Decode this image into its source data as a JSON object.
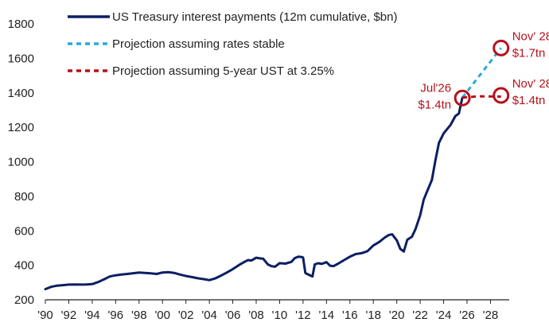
{
  "chart_data": {
    "type": "line",
    "title": "",
    "xlabel": "",
    "ylabel": "",
    "ylim": [
      200,
      1800
    ],
    "xlim": [
      1990,
      2029.6
    ],
    "y_ticks": [
      200,
      400,
      600,
      800,
      1000,
      1200,
      1400,
      1600,
      1800
    ],
    "x_ticks": [
      "'90",
      "'92",
      "'94",
      "'96",
      "'98",
      "'00",
      "'02",
      "'04",
      "'06",
      "'08",
      "'10",
      "'12",
      "'14",
      "'16",
      "'18",
      "'20",
      "'22",
      "'24",
      "'26",
      "'28"
    ],
    "grid": false,
    "legend_position": "top-left",
    "series": [
      {
        "name": "US Treasury interest payments (12m cumulative, $bn)",
        "style": "solid",
        "color": "#0b1f63",
        "x": [
          1990.0,
          1990.5,
          1991.0,
          1991.5,
          1992.0,
          1992.5,
          1993.0,
          1993.5,
          1994.0,
          1994.5,
          1995.0,
          1995.5,
          1996.0,
          1996.5,
          1997.0,
          1997.5,
          1998.0,
          1998.5,
          1999.0,
          1999.5,
          2000.0,
          2000.5,
          2001.0,
          2001.5,
          2002.0,
          2002.5,
          2003.0,
          2003.5,
          2004.0,
          2004.5,
          2005.0,
          2005.5,
          2006.0,
          2006.5,
          2007.0,
          2007.3,
          2007.6,
          2008.0,
          2008.3,
          2008.6,
          2009.0,
          2009.3,
          2009.6,
          2010.0,
          2010.5,
          2011.0,
          2011.3,
          2011.6,
          2011.9,
          2012.0,
          2012.2,
          2012.5,
          2012.8,
          2013.0,
          2013.3,
          2013.6,
          2014.0,
          2014.3,
          2014.6,
          2015.0,
          2015.5,
          2016.0,
          2016.5,
          2017.0,
          2017.5,
          2018.0,
          2018.5,
          2019.0,
          2019.3,
          2019.6,
          2020.0,
          2020.3,
          2020.6,
          2020.9,
          2021.3,
          2021.6,
          2022.0,
          2022.3,
          2022.6,
          2023.0,
          2023.3,
          2023.6,
          2024.0,
          2024.3,
          2024.6,
          2025.0,
          2025.3,
          2025.6
        ],
        "values": [
          262,
          275,
          282,
          285,
          288,
          289,
          288,
          289,
          291,
          303,
          318,
          335,
          342,
          346,
          350,
          354,
          358,
          356,
          353,
          350,
          358,
          360,
          356,
          346,
          338,
          332,
          325,
          320,
          314,
          324,
          340,
          358,
          378,
          400,
          420,
          430,
          428,
          444,
          440,
          438,
          405,
          395,
          392,
          412,
          410,
          420,
          442,
          450,
          448,
          445,
          355,
          345,
          335,
          405,
          412,
          408,
          418,
          398,
          395,
          410,
          430,
          450,
          465,
          470,
          482,
          515,
          535,
          562,
          575,
          580,
          545,
          495,
          480,
          548,
          566,
          610,
          690,
          780,
          830,
          895,
          1010,
          1110,
          1165,
          1190,
          1215,
          1265,
          1280,
          1372
        ]
      },
      {
        "name": "Projection assuming rates stable",
        "style": "dashed",
        "color": "#29a8e0",
        "x": [
          2025.6,
          2028.9
        ],
        "values": [
          1372,
          1660
        ]
      },
      {
        "name": "Projection assuming 5-year UST at 3.25%",
        "style": "dashed",
        "color": "#b5121b",
        "x": [
          2025.6,
          2027.0,
          2028.9
        ],
        "values": [
          1372,
          1380,
          1378
        ]
      }
    ],
    "annotations": [
      {
        "name": "annotation-jul26",
        "lines": [
          "Jul'26",
          "$1.4tn"
        ],
        "x": 2025.6,
        "y": 1370,
        "side": "left"
      },
      {
        "name": "annotation-nov28-high",
        "lines": [
          "Nov' 28",
          "$1.7tn"
        ],
        "x": 2028.9,
        "y": 1660,
        "side": "right"
      },
      {
        "name": "annotation-nov28-low",
        "lines": [
          "Nov' 28",
          "$1.4tn"
        ],
        "x": 2028.9,
        "y": 1385,
        "side": "right"
      }
    ],
    "colors": {
      "axis": "#222222",
      "text": "#222222",
      "callout": "#b5121b"
    }
  }
}
